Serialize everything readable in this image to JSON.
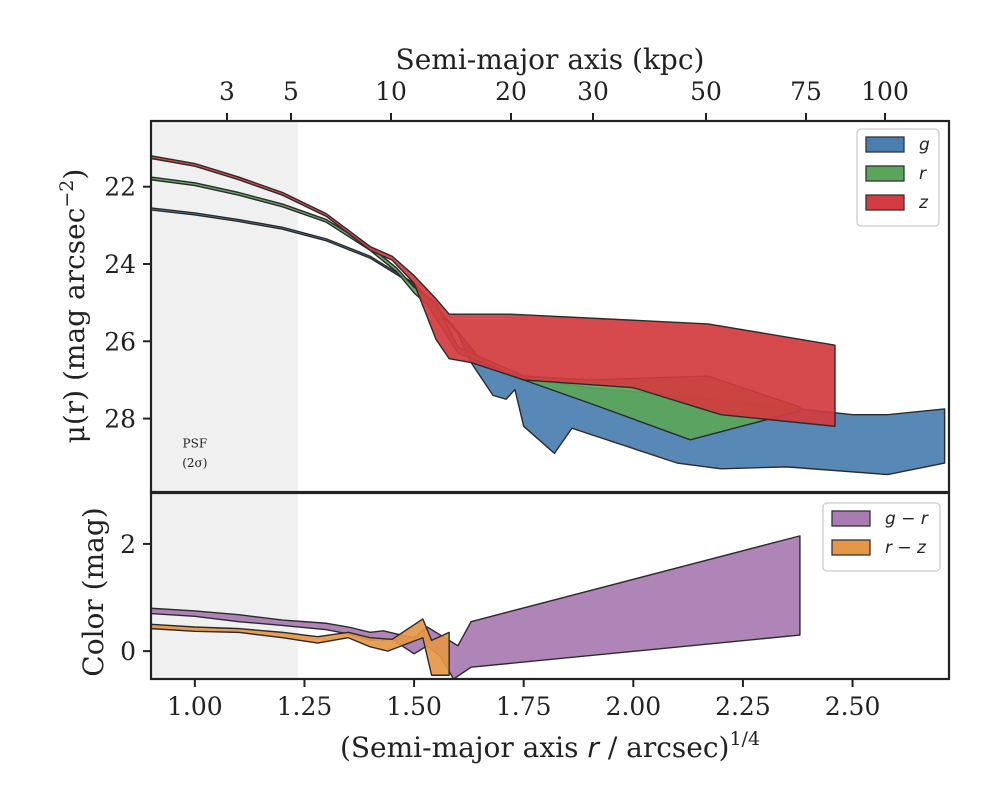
{
  "chart_data": [
    {
      "type": "area",
      "panel": "surface-brightness",
      "ylabel": "μ(r) (mag arcsec⁻²)",
      "ylabel_main": "μ(r) (mag arcsec",
      "ylabel_sup": "−2",
      "ylabel_close": ")",
      "top_xlabel": "Semi-major axis (kpc)",
      "top_ticks": [
        3,
        5,
        10,
        20,
        30,
        50,
        75,
        100
      ],
      "top_tick_labels": [
        "3",
        "5",
        "10",
        "20",
        "30",
        "50",
        "75",
        "100"
      ],
      "xlim": [
        0.9,
        2.72
      ],
      "ylim": [
        29.9,
        20.3
      ],
      "y_inverted": true,
      "yticks": [
        22,
        24,
        26,
        28
      ],
      "ytick_labels": [
        "22",
        "24",
        "26",
        "28"
      ],
      "psf_limit": 1.235,
      "psf_label_line1": "PSF",
      "psf_label_line2": "(2σ)",
      "legend_position": "top-right",
      "series": [
        {
          "name": "g",
          "color": "#4a7eb0",
          "upper": [
            [
              0.9,
              22.55
            ],
            [
              1.0,
              22.68
            ],
            [
              1.1,
              22.85
            ],
            [
              1.2,
              23.05
            ],
            [
              1.3,
              23.35
            ],
            [
              1.4,
              23.8
            ],
            [
              1.5,
              24.5
            ],
            [
              1.55,
              25.1
            ],
            [
              1.6,
              25.75
            ],
            [
              1.65,
              26.45
            ],
            [
              1.7,
              26.75
            ],
            [
              1.75,
              26.95
            ],
            [
              1.9,
              27.2
            ],
            [
              2.1,
              27.4
            ],
            [
              2.3,
              27.65
            ],
            [
              2.5,
              27.9
            ],
            [
              2.58,
              27.9
            ],
            [
              2.71,
              27.75
            ]
          ],
          "lower": [
            [
              0.9,
              22.6
            ],
            [
              1.0,
              22.73
            ],
            [
              1.1,
              22.9
            ],
            [
              1.2,
              23.1
            ],
            [
              1.3,
              23.4
            ],
            [
              1.4,
              23.85
            ],
            [
              1.5,
              24.55
            ],
            [
              1.55,
              25.15
            ],
            [
              1.6,
              25.8
            ],
            [
              1.63,
              26.55
            ],
            [
              1.68,
              27.4
            ],
            [
              1.71,
              27.5
            ],
            [
              1.73,
              27.25
            ],
            [
              1.75,
              28.2
            ],
            [
              1.82,
              28.9
            ],
            [
              1.86,
              28.25
            ],
            [
              2.1,
              29.15
            ],
            [
              2.2,
              29.3
            ],
            [
              2.35,
              29.25
            ],
            [
              2.58,
              29.45
            ],
            [
              2.71,
              29.15
            ]
          ]
        },
        {
          "name": "r",
          "color": "#5aa55a",
          "upper": [
            [
              0.9,
              21.75
            ],
            [
              1.0,
              21.9
            ],
            [
              1.1,
              22.15
            ],
            [
              1.2,
              22.45
            ],
            [
              1.3,
              22.85
            ],
            [
              1.4,
              23.55
            ],
            [
              1.46,
              24.1
            ],
            [
              1.5,
              24.6
            ],
            [
              1.55,
              25.0
            ],
            [
              1.6,
              26.15
            ],
            [
              1.75,
              26.9
            ],
            [
              1.9,
              27.0
            ],
            [
              2.17,
              26.9
            ],
            [
              2.38,
              27.7
            ]
          ],
          "lower": [
            [
              0.9,
              21.82
            ],
            [
              1.0,
              21.97
            ],
            [
              1.1,
              22.22
            ],
            [
              1.2,
              22.52
            ],
            [
              1.3,
              22.92
            ],
            [
              1.4,
              23.65
            ],
            [
              1.46,
              24.2
            ],
            [
              1.5,
              24.75
            ],
            [
              1.53,
              25.05
            ],
            [
              1.6,
              26.3
            ],
            [
              1.75,
              27.0
            ],
            [
              1.9,
              27.6
            ],
            [
              2.13,
              28.55
            ],
            [
              2.38,
              27.8
            ]
          ]
        },
        {
          "name": "z",
          "color": "#d23b3f",
          "upper": [
            [
              0.9,
              21.2
            ],
            [
              1.0,
              21.4
            ],
            [
              1.1,
              21.75
            ],
            [
              1.2,
              22.15
            ],
            [
              1.3,
              22.7
            ],
            [
              1.4,
              23.55
            ],
            [
              1.45,
              23.8
            ],
            [
              1.5,
              24.3
            ],
            [
              1.55,
              24.9
            ],
            [
              1.58,
              25.3
            ],
            [
              1.72,
              25.3
            ],
            [
              2.17,
              25.55
            ],
            [
              2.46,
              26.1
            ]
          ],
          "lower": [
            [
              0.9,
              21.27
            ],
            [
              1.0,
              21.47
            ],
            [
              1.1,
              21.82
            ],
            [
              1.2,
              22.22
            ],
            [
              1.3,
              22.77
            ],
            [
              1.4,
              23.65
            ],
            [
              1.45,
              23.9
            ],
            [
              1.5,
              24.5
            ],
            [
              1.55,
              25.95
            ],
            [
              1.58,
              26.45
            ],
            [
              1.63,
              26.55
            ],
            [
              1.75,
              27.0
            ],
            [
              2.0,
              27.2
            ],
            [
              2.2,
              27.9
            ],
            [
              2.46,
              28.2
            ]
          ]
        }
      ]
    },
    {
      "type": "area",
      "panel": "color-profile",
      "ylabel": "Color (mag)",
      "xlabel": "(Semi-major axis r / arcsec)^1/4",
      "xlabel_main": "(Semi-major axis",
      "xlabel_var": "r",
      "xlabel_rest": "/ arcsec)",
      "xlabel_sup": "1/4",
      "xlim": [
        0.9,
        2.72
      ],
      "ylim": [
        -0.52,
        2.95
      ],
      "yticks": [
        0,
        2
      ],
      "ytick_labels": [
        "0",
        "2"
      ],
      "xticks": [
        1.0,
        1.25,
        1.5,
        1.75,
        2.0,
        2.25,
        2.5
      ],
      "xtick_labels": [
        "1.00",
        "1.25",
        "1.50",
        "1.75",
        "2.00",
        "2.25",
        "2.50"
      ],
      "legend_position": "top-right",
      "series": [
        {
          "name": "g − r",
          "color": "#a87bb1",
          "upper": [
            [
              0.9,
              0.8
            ],
            [
              1.0,
              0.75
            ],
            [
              1.1,
              0.68
            ],
            [
              1.2,
              0.58
            ],
            [
              1.3,
              0.52
            ],
            [
              1.35,
              0.45
            ],
            [
              1.4,
              0.35
            ],
            [
              1.43,
              0.38
            ],
            [
              1.46,
              0.32
            ],
            [
              1.5,
              0.25
            ],
            [
              1.53,
              0.45
            ],
            [
              1.56,
              0.3
            ],
            [
              1.6,
              0.1
            ],
            [
              1.63,
              0.55
            ],
            [
              2.38,
              2.15
            ]
          ],
          "lower": [
            [
              0.9,
              0.7
            ],
            [
              1.0,
              0.65
            ],
            [
              1.1,
              0.55
            ],
            [
              1.2,
              0.48
            ],
            [
              1.3,
              0.4
            ],
            [
              1.35,
              0.32
            ],
            [
              1.4,
              0.2
            ],
            [
              1.45,
              0.22
            ],
            [
              1.5,
              -0.05
            ],
            [
              1.53,
              0.1
            ],
            [
              1.56,
              -0.1
            ],
            [
              1.59,
              -0.52
            ],
            [
              1.63,
              -0.3
            ],
            [
              2.38,
              0.3
            ]
          ]
        },
        {
          "name": "r − z",
          "color": "#e59646",
          "upper": [
            [
              0.9,
              0.5
            ],
            [
              1.0,
              0.45
            ],
            [
              1.1,
              0.42
            ],
            [
              1.2,
              0.35
            ],
            [
              1.28,
              0.27
            ],
            [
              1.35,
              0.35
            ],
            [
              1.4,
              0.25
            ],
            [
              1.45,
              0.22
            ],
            [
              1.52,
              0.6
            ],
            [
              1.54,
              0.2
            ],
            [
              1.58,
              0.35
            ]
          ],
          "lower": [
            [
              0.9,
              0.42
            ],
            [
              1.0,
              0.37
            ],
            [
              1.1,
              0.35
            ],
            [
              1.2,
              0.25
            ],
            [
              1.28,
              0.15
            ],
            [
              1.35,
              0.25
            ],
            [
              1.4,
              0.08
            ],
            [
              1.44,
              0.0
            ],
            [
              1.52,
              0.25
            ],
            [
              1.54,
              -0.45
            ],
            [
              1.58,
              -0.45
            ]
          ]
        }
      ]
    }
  ]
}
